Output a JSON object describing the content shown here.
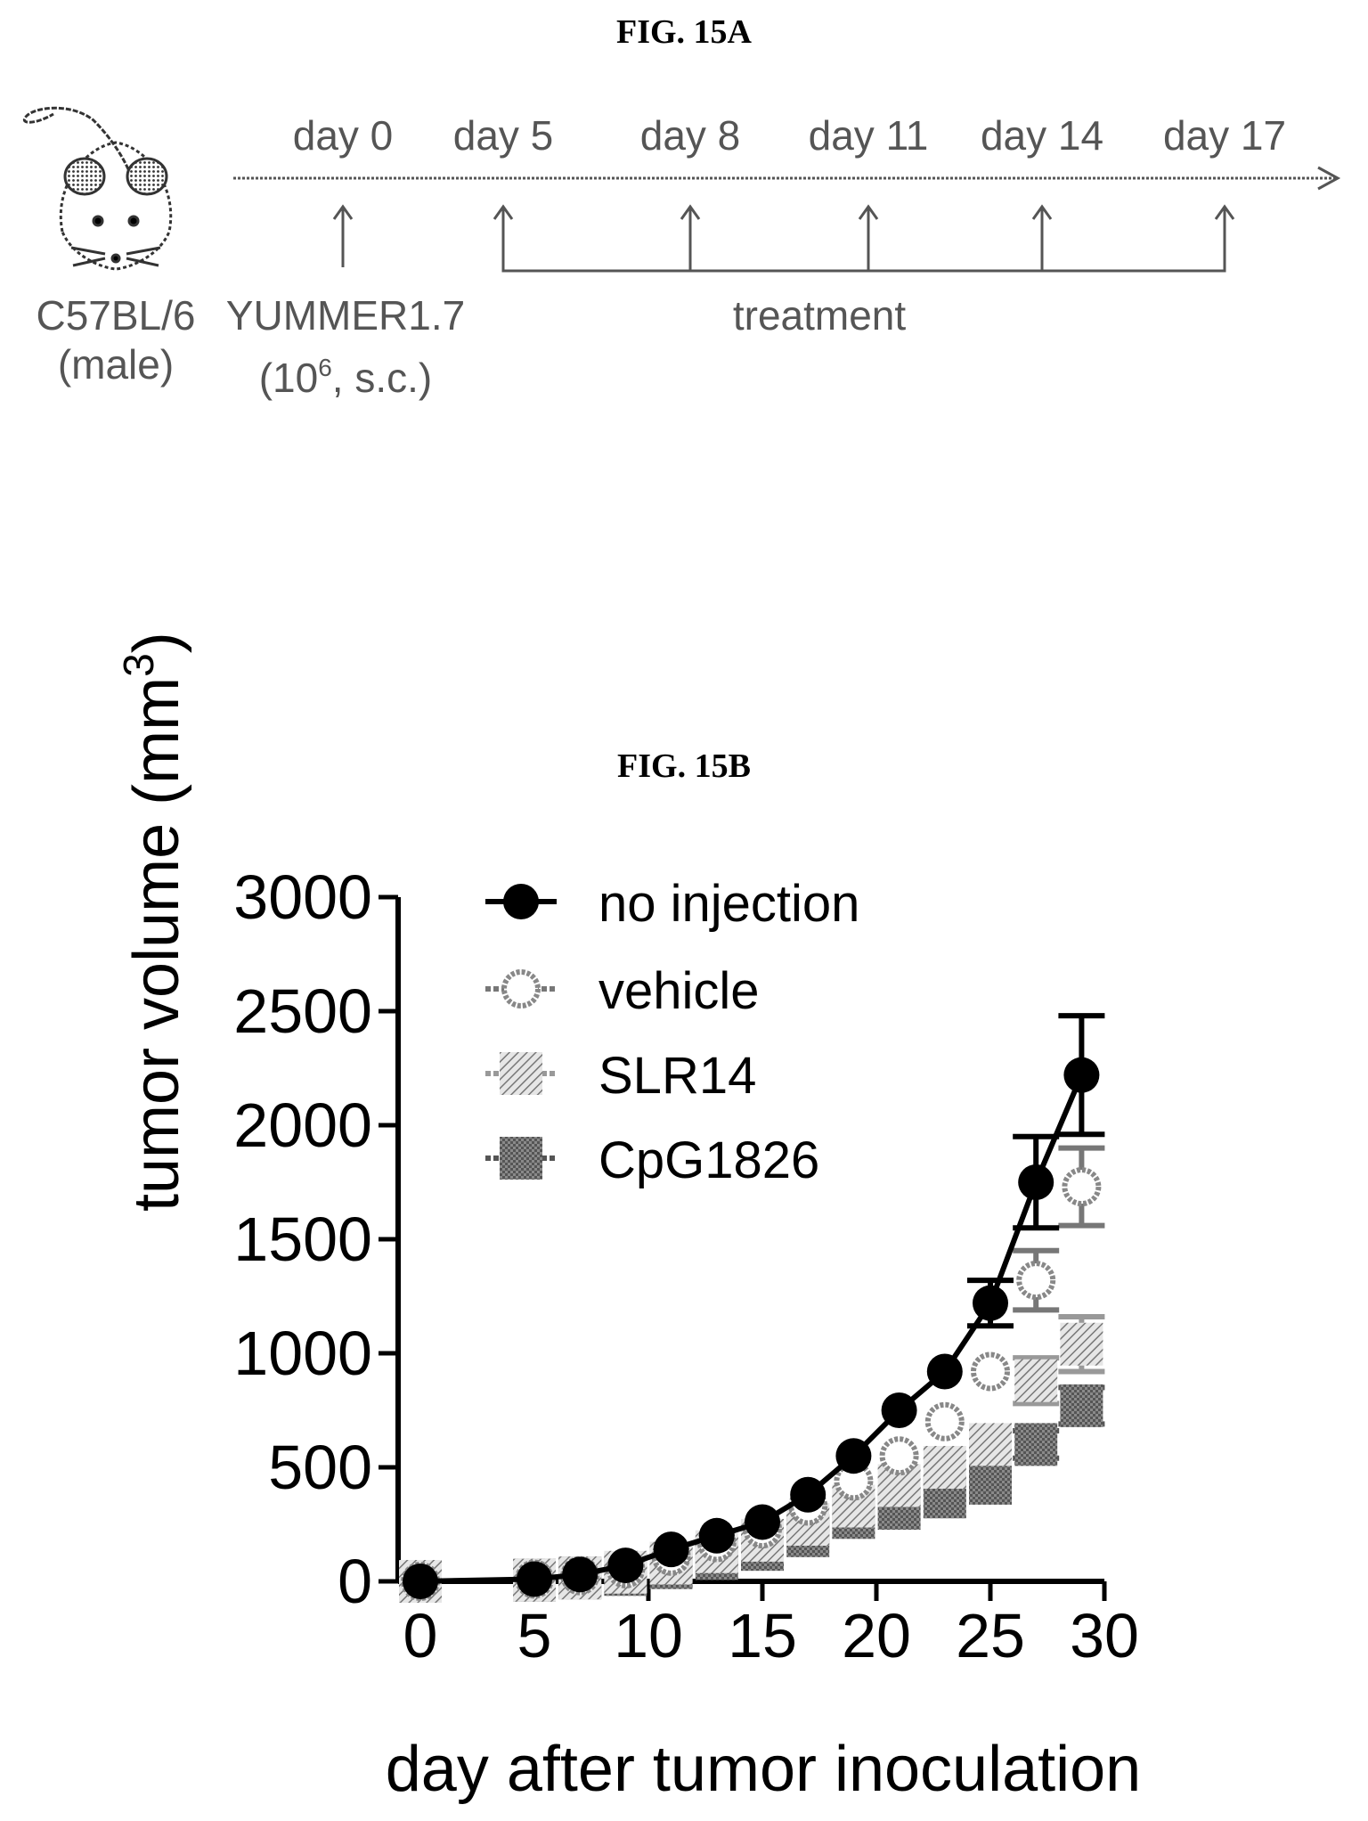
{
  "figure_a": {
    "title": "FIG. 15A",
    "strain": "C57BL/6",
    "sex": "(male)",
    "cell_line": "YUMMER1.7",
    "dose_base": "(10",
    "dose_exp": "6",
    "dose_rest": ", s.c.)",
    "treatment_label": "treatment",
    "timepoints": [
      "day 0",
      "day 5",
      "day 8",
      "day 11",
      "day 14",
      "day 17"
    ]
  },
  "figure_b": {
    "title": "FIG. 15B"
  },
  "chart_data": {
    "type": "line",
    "title": "",
    "xlabel": "day after tumor inoculation",
    "ylabel_base": "tumor volume (mm",
    "ylabel_exp": "3",
    "ylabel_close": ")",
    "xlim": [
      0,
      30
    ],
    "ylim": [
      0,
      3000
    ],
    "xticks": [
      0,
      5,
      10,
      15,
      20,
      25,
      30
    ],
    "yticks": [
      0,
      500,
      1000,
      1500,
      2000,
      2500,
      3000
    ],
    "grid": false,
    "legend_position": "top-left",
    "series": [
      {
        "name": "no injection",
        "marker": "filled-circle",
        "color": "#000000",
        "x": [
          0,
          5,
          7,
          9,
          11,
          13,
          15,
          17,
          19,
          21,
          23,
          25,
          27,
          29
        ],
        "y": [
          0,
          10,
          30,
          70,
          140,
          200,
          260,
          380,
          550,
          750,
          920,
          1220,
          1750,
          2220
        ],
        "error": [
          0,
          0,
          0,
          0,
          0,
          0,
          0,
          0,
          0,
          0,
          0,
          100,
          200,
          260
        ]
      },
      {
        "name": "vehicle",
        "marker": "open-circle",
        "color": "#777777",
        "x": [
          0,
          5,
          7,
          9,
          11,
          13,
          15,
          17,
          19,
          21,
          23,
          25,
          27,
          29
        ],
        "y": [
          0,
          10,
          25,
          55,
          110,
          170,
          230,
          330,
          440,
          550,
          700,
          920,
          1320,
          1730
        ],
        "error": [
          0,
          0,
          0,
          0,
          0,
          0,
          0,
          0,
          0,
          0,
          0,
          0,
          130,
          170
        ]
      },
      {
        "name": "SLR14",
        "marker": "hatched-square",
        "color": "#999999",
        "x": [
          0,
          5,
          7,
          9,
          11,
          13,
          15,
          17,
          19,
          21,
          23,
          25,
          27,
          29
        ],
        "y": [
          0,
          5,
          15,
          40,
          80,
          130,
          180,
          250,
          330,
          420,
          500,
          600,
          880,
          1040
        ],
        "error": [
          0,
          0,
          0,
          0,
          0,
          0,
          0,
          0,
          0,
          0,
          0,
          0,
          100,
          120
        ]
      },
      {
        "name": "CpG1826",
        "marker": "filled-square",
        "color": "#555555",
        "x": [
          0,
          5,
          7,
          9,
          11,
          13,
          15,
          17,
          19,
          21,
          23,
          25,
          27,
          29
        ],
        "y": [
          0,
          5,
          15,
          30,
          60,
          100,
          140,
          200,
          280,
          320,
          370,
          430,
          600,
          770
        ],
        "error": [
          0,
          0,
          0,
          0,
          0,
          0,
          0,
          0,
          0,
          0,
          0,
          0,
          60,
          80
        ]
      }
    ]
  }
}
